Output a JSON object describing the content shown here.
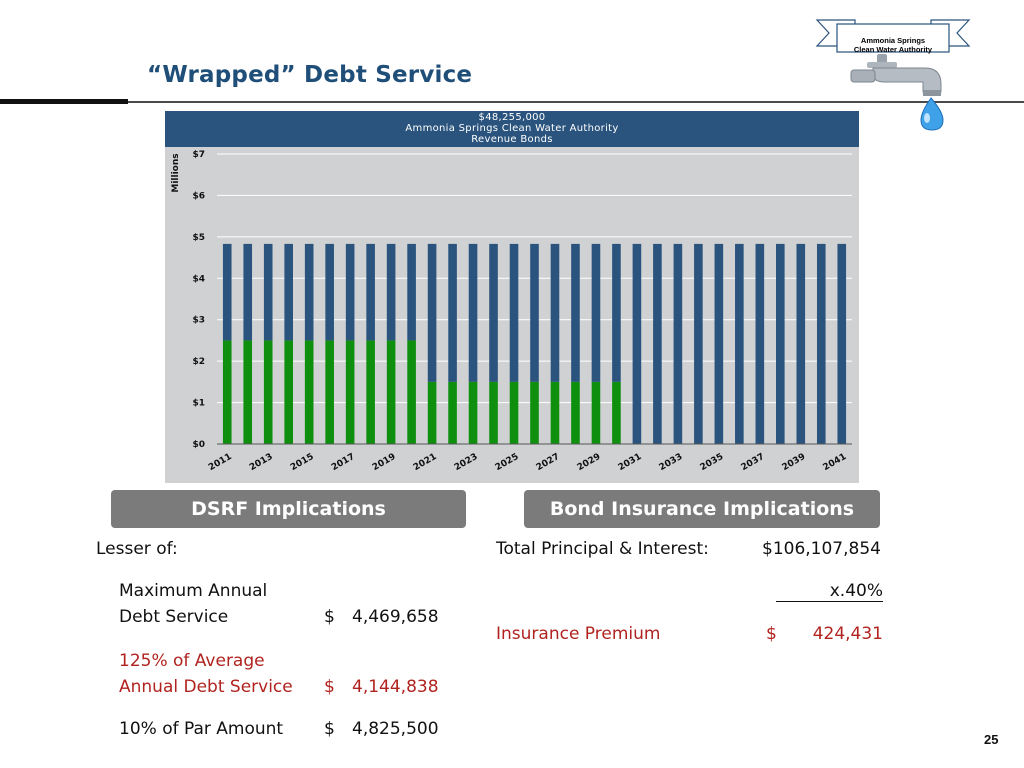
{
  "slide": {
    "title": "“Wrapped” Debt Service",
    "page_number": "25",
    "logo_text": [
      "Ammonia Springs",
      "Clean Water Authority"
    ]
  },
  "chart_banner": {
    "line1": "$48,255,000",
    "line2": "Ammonia Springs Clean Water Authority",
    "line3": "Revenue Bonds"
  },
  "chart_data": {
    "type": "bar",
    "stacked": true,
    "title": "",
    "ylabel": "Millions",
    "xlabel": "",
    "ylim": [
      0,
      7
    ],
    "yticks": [
      "$0",
      "$1",
      "$2",
      "$3",
      "$4",
      "$5",
      "$6",
      "$7"
    ],
    "grid": true,
    "x_tick_labels": [
      "2011",
      "2013",
      "2015",
      "2017",
      "2019",
      "2021",
      "2023",
      "2025",
      "2027",
      "2029",
      "2031",
      "2033",
      "2035",
      "2037",
      "2039",
      "2041"
    ],
    "categories": [
      "2011",
      "2012",
      "2013",
      "2014",
      "2015",
      "2016",
      "2017",
      "2018",
      "2019",
      "2020",
      "2021",
      "2022",
      "2023",
      "2024",
      "2025",
      "2026",
      "2027",
      "2028",
      "2029",
      "2030",
      "2031",
      "2032",
      "2033",
      "2034",
      "2035",
      "2036",
      "2037",
      "2038",
      "2039",
      "2040",
      "2041"
    ],
    "series": [
      {
        "color": "#0e8f0e",
        "values": [
          2.5,
          2.5,
          2.5,
          2.5,
          2.5,
          2.5,
          2.5,
          2.5,
          2.5,
          2.5,
          1.5,
          1.5,
          1.5,
          1.5,
          1.5,
          1.5,
          1.5,
          1.5,
          1.5,
          1.5,
          0,
          0,
          0,
          0,
          0,
          0,
          0,
          0,
          0,
          0,
          0
        ]
      },
      {
        "color": "#2a547e",
        "values": [
          2.33,
          2.33,
          2.33,
          2.33,
          2.33,
          2.33,
          2.33,
          2.33,
          2.33,
          2.33,
          3.33,
          3.33,
          3.33,
          3.33,
          3.33,
          3.33,
          3.33,
          3.33,
          3.33,
          3.33,
          4.83,
          4.83,
          4.83,
          4.83,
          4.83,
          4.83,
          4.83,
          4.83,
          4.83,
          4.83,
          4.83
        ]
      }
    ]
  },
  "dsrf": {
    "header": "DSRF Implications",
    "lesser_of": "Lesser of:",
    "max_annual_line1": "Maximum Annual",
    "max_annual_line2": "Debt Service",
    "max_annual_dollar": "$",
    "max_annual_value": "4,469,658",
    "avg_line1": "125% of Average",
    "avg_line2": "Annual Debt Service",
    "avg_dollar": "$",
    "avg_value": "4,144,838",
    "par_label": "10% of Par Amount",
    "par_dollar": "$",
    "par_value": "4,825,500"
  },
  "insurance": {
    "header": "Bond Insurance Implications",
    "total_label": "Total Principal & Interest:",
    "total_value": "$106,107,854",
    "rate": "x.40%",
    "premium_label": "Insurance Premium",
    "premium_dollar": "$",
    "premium_value": "424,431"
  },
  "colors": {
    "title": "#1f4e79",
    "banner": "#2a547e",
    "green_bars": "#0e8f0e",
    "blue_bars": "#2a547e",
    "plot_bg": "#cfd1d3",
    "accent_red": "#b0231f",
    "pill": "#7b7b7b"
  }
}
